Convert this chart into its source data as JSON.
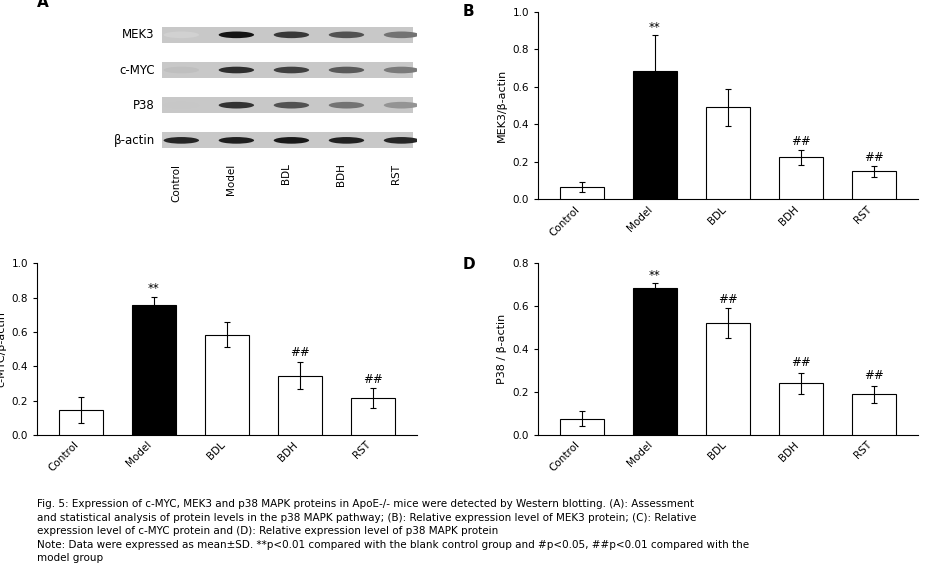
{
  "panel_B": {
    "categories": [
      "Control",
      "Model",
      "BDL",
      "BDH",
      "RST"
    ],
    "values": [
      0.065,
      0.685,
      0.49,
      0.225,
      0.148
    ],
    "errors": [
      0.025,
      0.19,
      0.1,
      0.04,
      0.03
    ],
    "bar_colors": [
      "white",
      "black",
      "white",
      "white",
      "white"
    ],
    "ylabel": "MEK3/β-actin",
    "ylim": [
      0,
      1.0
    ],
    "yticks": [
      0.0,
      0.2,
      0.4,
      0.6,
      0.8,
      1.0
    ],
    "annotations": [
      {
        "x": 1,
        "text": "**",
        "y_data": 0.88
      },
      {
        "x": 3,
        "text": "##",
        "y_data": 0.275
      },
      {
        "x": 4,
        "text": "##",
        "y_data": 0.19
      }
    ]
  },
  "panel_C": {
    "categories": [
      "Control",
      "Model",
      "BDL",
      "BDH",
      "RST"
    ],
    "values": [
      0.145,
      0.755,
      0.585,
      0.345,
      0.215
    ],
    "errors": [
      0.075,
      0.05,
      0.075,
      0.08,
      0.06
    ],
    "bar_colors": [
      "white",
      "black",
      "white",
      "white",
      "white"
    ],
    "ylabel": "c-MYC/β-actin",
    "ylim": [
      0,
      1.0
    ],
    "yticks": [
      0.0,
      0.2,
      0.4,
      0.6,
      0.8,
      1.0
    ],
    "annotations": [
      {
        "x": 1,
        "text": "**",
        "y_data": 0.815
      },
      {
        "x": 3,
        "text": "##",
        "y_data": 0.44
      },
      {
        "x": 4,
        "text": "##",
        "y_data": 0.285
      }
    ]
  },
  "panel_D": {
    "categories": [
      "Control",
      "Model",
      "BDL",
      "BDH",
      "RST"
    ],
    "values": [
      0.075,
      0.685,
      0.52,
      0.24,
      0.19
    ],
    "errors": [
      0.035,
      0.025,
      0.07,
      0.05,
      0.04
    ],
    "bar_colors": [
      "white",
      "black",
      "white",
      "white",
      "white"
    ],
    "ylabel": "P38 / β-actin",
    "ylim": [
      0,
      0.8
    ],
    "yticks": [
      0.0,
      0.2,
      0.4,
      0.6,
      0.8
    ],
    "annotations": [
      {
        "x": 1,
        "text": "**",
        "y_data": 0.715
      },
      {
        "x": 2,
        "text": "##",
        "y_data": 0.6
      },
      {
        "x": 3,
        "text": "##",
        "y_data": 0.305
      },
      {
        "x": 4,
        "text": "##",
        "y_data": 0.245
      }
    ]
  },
  "western_blot": {
    "proteins": [
      "MEK3",
      "c-MYC",
      "P38",
      "β-actin"
    ],
    "lane_labels": [
      "Control",
      "Model",
      "BDL",
      "BDH",
      "RST"
    ],
    "band_intensities": {
      "MEK3": [
        0.18,
        0.92,
        0.78,
        0.68,
        0.55
      ],
      "c-MYC": [
        0.25,
        0.82,
        0.75,
        0.65,
        0.52
      ],
      "P38": [
        0.22,
        0.8,
        0.68,
        0.55,
        0.42
      ],
      "β-actin": [
        0.85,
        0.88,
        0.9,
        0.87,
        0.85
      ]
    }
  },
  "panel_A_label": "A",
  "edgecolor": "black",
  "bar_width": 0.6,
  "fontsize_label": 8,
  "fontsize_tick": 7.5,
  "fontsize_annot": 8.5,
  "fontsize_legend": 7.5,
  "figure_legend_bold": "Fig. 5:",
  "figure_legend": "Fig. 5: Expression of c-MYC, MEK3 and p38 MAPK proteins in ApoE-/- mice were detected by Western blotting. (A): Assessment\nand statistical analysis of protein levels in the p38 MAPK pathway; (B): Relative expression level of MEK3 protein; (C): Relative\nexpression level of c-MYC protein and (D): Relative expression level of p38 MAPK protein\nNote: Data were expressed as mean±SD. **p<0.01 compared with the blank control group and #p<0.05, ##p<0.01 compared with the\nmodel group"
}
